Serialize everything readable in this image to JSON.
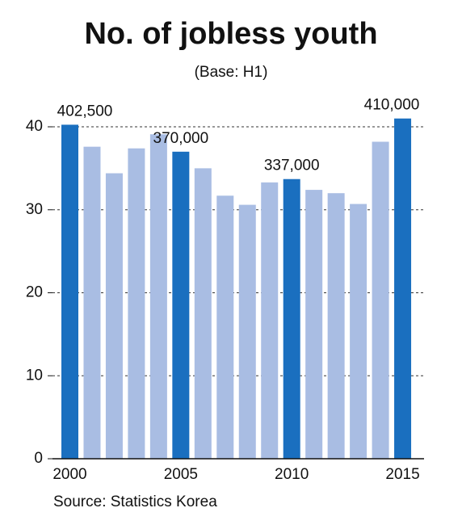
{
  "chart_data": {
    "type": "bar",
    "title": "No. of jobless youth",
    "subtitle": "(Base: H1)",
    "source": "Source: Statistics Korea",
    "categories": [
      "2000",
      null,
      null,
      null,
      null,
      "2005",
      null,
      null,
      null,
      null,
      "2010",
      null,
      null,
      null,
      null,
      "2015"
    ],
    "values": [
      40.25,
      37.6,
      34.4,
      37.4,
      39.1,
      37.0,
      35.0,
      31.7,
      30.6,
      33.3,
      33.7,
      32.4,
      32.0,
      30.7,
      38.2,
      41.0
    ],
    "value_labels": [
      "402,500",
      null,
      null,
      null,
      null,
      "370,000",
      null,
      null,
      null,
      null,
      "337,000",
      null,
      null,
      null,
      null,
      "410,000"
    ],
    "color": "#a9bde3",
    "highlight_color": "#1a6fbf",
    "ylim": [
      0,
      40
    ],
    "yticks": [
      0,
      10,
      20,
      30,
      40
    ],
    "grid": true
  }
}
